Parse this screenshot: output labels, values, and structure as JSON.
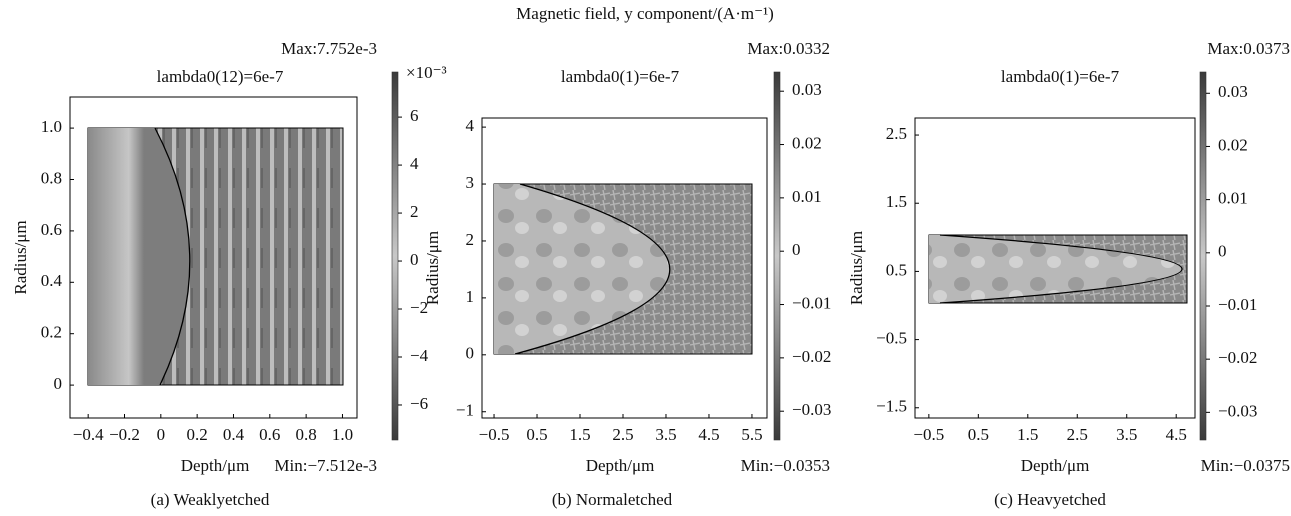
{
  "figure_title": "Magnetic field, y component/(A·m⁻¹)",
  "chart_data": [
    {
      "type": "field",
      "title": "lambda0(12)=6e-7",
      "xlabel": "Depth/μm",
      "ylabel": "Radius/μm",
      "caption": "(a) Weaklyetched",
      "max_label": "Max:7.752e-3",
      "min_label": "Min:−7.512e-3",
      "colorbar_unit": "×10⁻³",
      "xlim": [
        -0.5,
        1.08
      ],
      "ylim": [
        -0.128,
        1.121
      ],
      "clim": [
        -7.46,
        7.88
      ],
      "xticks": [
        {
          "value": -0.4,
          "label": "−0.4"
        },
        {
          "value": -0.2,
          "label": "−0.2"
        },
        0,
        0.2,
        0.4,
        0.6,
        0.8,
        {
          "value": 1,
          "label": "1.0"
        }
      ],
      "yticks": [
        0,
        0.2,
        0.4,
        0.6,
        0.8,
        {
          "value": 1,
          "label": "1.0"
        }
      ],
      "cticks": [
        {
          "value": -6,
          "label": "−6"
        },
        {
          "value": -4,
          "label": "−4"
        },
        {
          "value": -2,
          "label": "−2"
        },
        0,
        2,
        4,
        6
      ]
    },
    {
      "type": "field",
      "title": "lambda0(1)=6e-7",
      "xlabel": "Depth/μm",
      "ylabel": "Radius/μm",
      "caption": "(b) Normaletched",
      "max_label": "Max:0.0332",
      "min_label": "Min:−0.0353",
      "xlim": [
        -0.78,
        5.85
      ],
      "ylim": [
        -1.11,
        4.16
      ],
      "clim": [
        -0.0354,
        0.0336
      ],
      "xticks": [
        {
          "value": -0.5,
          "label": "−0.5"
        },
        0.5,
        1.5,
        2.5,
        3.5,
        4.5,
        5.5
      ],
      "yticks": [
        {
          "value": -1,
          "label": "−1"
        },
        0,
        1,
        2,
        3,
        4
      ],
      "cticks": [
        {
          "value": -0.03,
          "label": "−0.03"
        },
        {
          "value": -0.02,
          "label": "−0.02"
        },
        {
          "value": -0.01,
          "label": "−0.01"
        },
        0,
        0.01,
        0.02,
        0.03
      ]
    },
    {
      "type": "field",
      "title": "lambda0(1)=6e-7",
      "xlabel": "Depth/μm",
      "ylabel": "Radius/μm",
      "caption": "(c) Heavyetched",
      "max_label": "Max:0.0373",
      "min_label": "Min:−0.0375",
      "xlim": [
        -0.78,
        4.88
      ],
      "ylim": [
        -1.65,
        2.75
      ],
      "clim": [
        -0.0352,
        0.034
      ],
      "xticks": [
        {
          "value": -0.5,
          "label": "−0.5"
        },
        0.5,
        1.5,
        2.5,
        3.5,
        4.5
      ],
      "yticks": [
        {
          "value": -1.5,
          "label": "−1.5"
        },
        {
          "value": -0.5,
          "label": "−0.5"
        },
        0.5,
        1.5,
        2.5
      ],
      "cticks": [
        {
          "value": -0.03,
          "label": "−0.03"
        },
        {
          "value": -0.02,
          "label": "−0.02"
        },
        {
          "value": -0.01,
          "label": "−0.01"
        },
        0,
        0.01,
        0.02,
        0.03
      ]
    }
  ]
}
